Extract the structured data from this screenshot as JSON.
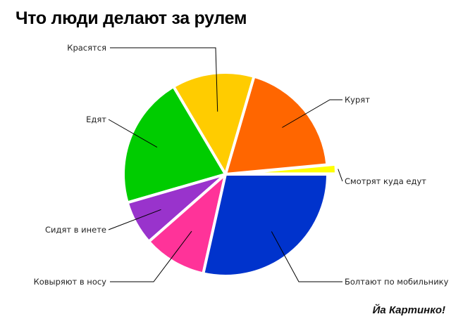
{
  "colors": {
    "leader_line": "#000000",
    "background": "#ffffff"
  },
  "chart_data": {
    "type": "pie",
    "title": "Что люди делают за рулем",
    "slices": [
      {
        "label": "Смотрят куда едут",
        "value": 1.5,
        "color": "#ffff00",
        "exploded": true
      },
      {
        "label": "Курят",
        "value": 19,
        "color": "#ff6600"
      },
      {
        "label": "Красятся",
        "value": 13,
        "color": "#ffcc00"
      },
      {
        "label": "Едят",
        "value": 21,
        "color": "#00cc00"
      },
      {
        "label": "Сидят в инете",
        "value": 7,
        "color": "#9933cc"
      },
      {
        "label": "Ковыряют в носу",
        "value": 10,
        "color": "#ff3399"
      },
      {
        "label": "Болтают по мобильнику",
        "value": 28.5,
        "color": "#0033cc"
      }
    ],
    "start_angle_deg": 0,
    "direction": "counterclockwise",
    "legend": "none",
    "watermark": "Йа Картинко!"
  }
}
